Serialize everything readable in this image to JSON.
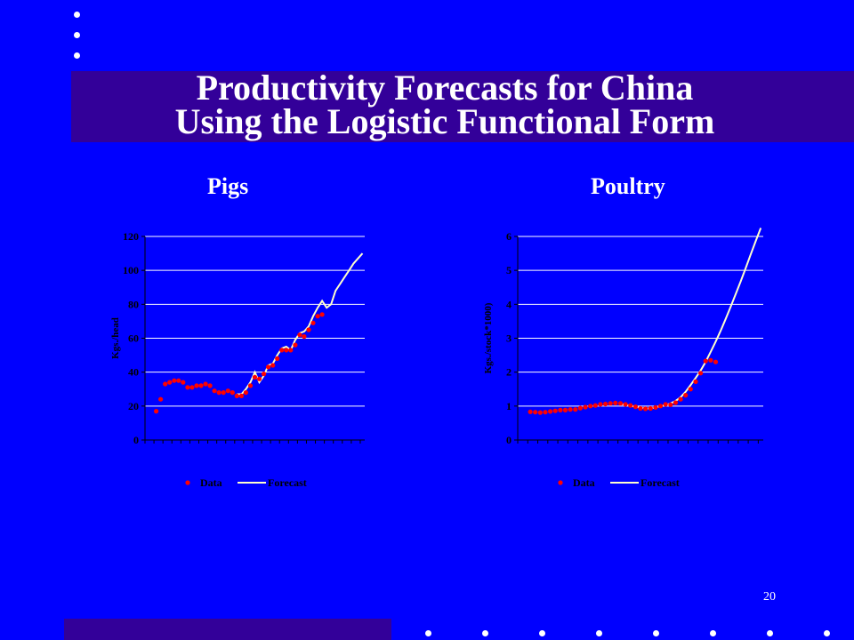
{
  "slide": {
    "title_line1": "Productivity Forecasts for China",
    "title_line2": "Using the Logistic Functional Form",
    "page_number": "20"
  },
  "colors": {
    "background": "#0000ff",
    "band": "#330099",
    "data_marker": "#ff0000",
    "forecast_line": "#ffffcc",
    "gridline": "#ffffff"
  },
  "chart_data": [
    {
      "type": "line",
      "subtitle": "Pigs",
      "ylabel": "Kgs./head",
      "ylim": [
        0,
        120
      ],
      "yticks": [
        0,
        20,
        40,
        60,
        80,
        100,
        120
      ],
      "y_decimals": 0,
      "x_count": 49,
      "grid": true,
      "legend_position": "bottom",
      "series": [
        {
          "name": "Data",
          "style": "markers",
          "x": [
            3,
            4,
            5,
            6,
            7,
            8,
            9,
            10,
            11,
            12,
            13,
            14,
            15,
            16,
            17,
            18,
            19,
            20,
            21,
            22,
            23,
            24,
            25,
            26,
            27,
            28,
            29,
            30,
            31,
            32,
            33,
            34,
            35,
            36,
            37,
            38,
            39,
            40
          ],
          "values": [
            17,
            24,
            33,
            34,
            35,
            35,
            34,
            31,
            31,
            32,
            32,
            33,
            32,
            29,
            28,
            28,
            29,
            28,
            26,
            26,
            28,
            32,
            37,
            36,
            39,
            43,
            44,
            48,
            53,
            53,
            53,
            56,
            62,
            61,
            65,
            69,
            73,
            74
          ]
        },
        {
          "name": "Forecast",
          "style": "line",
          "x": [
            21,
            22,
            23,
            24,
            25,
            26,
            27,
            28,
            29,
            30,
            31,
            32,
            33,
            34,
            35,
            36,
            37,
            38,
            39,
            40,
            41,
            42,
            43,
            44,
            45,
            46,
            47,
            48,
            49
          ],
          "values": [
            27,
            27,
            30,
            34,
            40,
            34,
            38,
            44,
            45,
            50,
            54,
            55,
            53,
            59,
            63,
            64,
            67,
            73,
            78,
            82,
            78,
            80,
            88,
            92,
            96,
            100,
            104,
            107,
            110
          ]
        }
      ]
    },
    {
      "type": "line",
      "subtitle": "Poultry",
      "ylabel": "Kgs./stock*1000)",
      "ylim": [
        0,
        6
      ],
      "yticks": [
        0,
        1,
        2,
        3,
        4,
        5,
        6
      ],
      "y_decimals": 0,
      "x_count": 49,
      "grid": true,
      "legend_position": "bottom",
      "series": [
        {
          "name": "Data",
          "style": "markers",
          "x": [
            3,
            4,
            5,
            6,
            7,
            8,
            9,
            10,
            11,
            12,
            13,
            14,
            15,
            16,
            17,
            18,
            19,
            20,
            21,
            22,
            23,
            24,
            25,
            26,
            27,
            28,
            29,
            30,
            31,
            32,
            33,
            34,
            35,
            36,
            37,
            38,
            39,
            40
          ],
          "values": [
            0.83,
            0.82,
            0.81,
            0.82,
            0.84,
            0.86,
            0.88,
            0.88,
            0.9,
            0.9,
            0.94,
            0.97,
            1.0,
            1.02,
            1.05,
            1.06,
            1.08,
            1.09,
            1.08,
            1.05,
            1.02,
            0.98,
            0.93,
            0.92,
            0.93,
            0.96,
            1.0,
            1.05,
            1.04,
            1.1,
            1.2,
            1.32,
            1.5,
            1.72,
            1.97,
            2.33,
            2.35,
            2.3
          ]
        },
        {
          "name": "Forecast",
          "style": "line",
          "x": [
            21,
            22,
            23,
            24,
            25,
            26,
            27,
            28,
            29,
            30,
            31,
            32,
            33,
            34,
            35,
            36,
            37,
            38,
            39,
            40,
            41,
            42,
            43,
            44,
            45,
            46,
            47,
            48,
            49
          ],
          "values": [
            1.06,
            1.04,
            1.01,
            0.98,
            0.95,
            0.93,
            0.93,
            0.96,
            1.0,
            1.02,
            1.08,
            1.15,
            1.26,
            1.42,
            1.62,
            1.83,
            2.05,
            2.3,
            2.6,
            2.9,
            3.22,
            3.57,
            3.93,
            4.3,
            4.68,
            5.07,
            5.47,
            5.87,
            6.25
          ]
        }
      ]
    }
  ]
}
